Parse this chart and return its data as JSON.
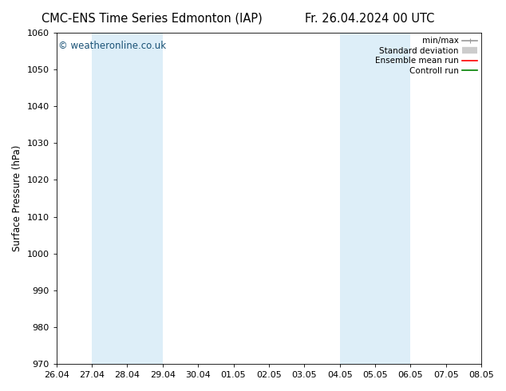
{
  "title_left": "CMC-ENS Time Series Edmonton (IAP)",
  "title_right": "Fr. 26.04.2024 00 UTC",
  "ylabel": "Surface Pressure (hPa)",
  "ylim": [
    970,
    1060
  ],
  "yticks": [
    970,
    980,
    990,
    1000,
    1010,
    1020,
    1030,
    1040,
    1050,
    1060
  ],
  "xlim_start": 0,
  "xlim_end": 12,
  "xtick_labels": [
    "26.04",
    "27.04",
    "28.04",
    "29.04",
    "30.04",
    "01.05",
    "02.05",
    "03.05",
    "04.05",
    "05.05",
    "06.05",
    "07.05",
    "08.05"
  ],
  "xtick_positions": [
    0,
    1,
    2,
    3,
    4,
    5,
    6,
    7,
    8,
    9,
    10,
    11,
    12
  ],
  "shaded_regions": [
    {
      "xmin": 1,
      "xmax": 3,
      "color": "#ddeef8"
    },
    {
      "xmin": 8,
      "xmax": 10,
      "color": "#ddeef8"
    }
  ],
  "watermark": "© weatheronline.co.uk",
  "watermark_color": "#1a5276",
  "legend_items": [
    {
      "label": "min/max",
      "color": "#999999",
      "lw": 1.2
    },
    {
      "label": "Standard deviation",
      "color": "#cccccc",
      "lw": 6
    },
    {
      "label": "Ensemble mean run",
      "color": "red",
      "lw": 1.2
    },
    {
      "label": "Controll run",
      "color": "green",
      "lw": 1.2
    }
  ],
  "background_color": "#ffffff",
  "plot_bg_color": "#ffffff",
  "title_fontsize": 10.5,
  "ylabel_fontsize": 8.5,
  "tick_fontsize": 8,
  "legend_fontsize": 7.5,
  "watermark_fontsize": 8.5
}
